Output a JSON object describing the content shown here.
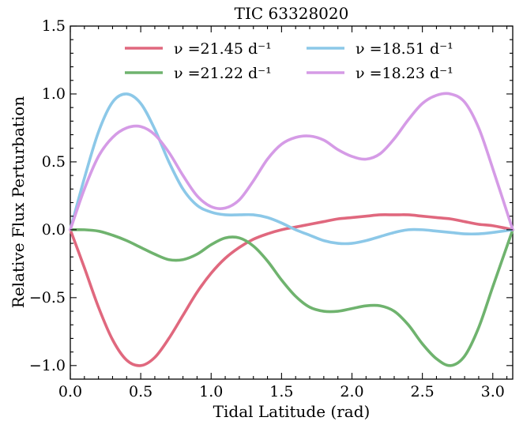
{
  "chart_data": {
    "type": "line",
    "title": "TIC 63328020",
    "xlabel": "Tidal Latitude (rad)",
    "ylabel": "Relative Flux Perturbation",
    "xlim": [
      0.0,
      3.1416
    ],
    "ylim": [
      -1.1,
      1.5
    ],
    "x_ticks": [
      "0.0",
      "0.5",
      "1.0",
      "1.5",
      "2.0",
      "2.5",
      "3.0"
    ],
    "y_ticks": [
      "−1.0",
      "−0.5",
      "0.0",
      "0.5",
      "1.0",
      "1.5"
    ],
    "grid": false,
    "legend_position": "top",
    "series": [
      {
        "name": "ν =21.45 d⁻¹",
        "color": "#e0687e",
        "x": [
          0.0,
          0.1,
          0.2,
          0.3,
          0.4,
          0.5,
          0.6,
          0.7,
          0.8,
          0.9,
          1.0,
          1.1,
          1.2,
          1.3,
          1.4,
          1.5,
          1.6,
          1.7,
          1.8,
          1.9,
          2.0,
          2.1,
          2.2,
          2.3,
          2.4,
          2.5,
          2.6,
          2.7,
          2.8,
          2.9,
          3.0,
          3.1416
        ],
        "y": [
          0.0,
          -0.28,
          -0.57,
          -0.81,
          -0.96,
          -1.0,
          -0.94,
          -0.8,
          -0.63,
          -0.46,
          -0.32,
          -0.21,
          -0.13,
          -0.07,
          -0.03,
          0.0,
          0.02,
          0.04,
          0.06,
          0.08,
          0.09,
          0.1,
          0.11,
          0.11,
          0.11,
          0.1,
          0.09,
          0.08,
          0.06,
          0.04,
          0.03,
          0.0
        ]
      },
      {
        "name": "ν =21.22 d⁻¹",
        "color": "#6fb36e",
        "x": [
          0.0,
          0.1,
          0.2,
          0.3,
          0.4,
          0.5,
          0.6,
          0.7,
          0.8,
          0.9,
          1.0,
          1.1,
          1.2,
          1.3,
          1.4,
          1.5,
          1.6,
          1.7,
          1.8,
          1.9,
          2.0,
          2.1,
          2.2,
          2.3,
          2.4,
          2.5,
          2.6,
          2.7,
          2.8,
          2.9,
          3.0,
          3.1416
        ],
        "y": [
          0.0,
          0.0,
          -0.01,
          -0.04,
          -0.08,
          -0.13,
          -0.18,
          -0.22,
          -0.22,
          -0.18,
          -0.11,
          -0.06,
          -0.06,
          -0.12,
          -0.23,
          -0.37,
          -0.49,
          -0.57,
          -0.6,
          -0.6,
          -0.58,
          -0.56,
          -0.56,
          -0.6,
          -0.7,
          -0.84,
          -0.95,
          -1.0,
          -0.93,
          -0.72,
          -0.42,
          0.0
        ]
      },
      {
        "name": "ν =18.51 d⁻¹",
        "color": "#8cc8e8",
        "x": [
          0.0,
          0.1,
          0.2,
          0.3,
          0.4,
          0.5,
          0.6,
          0.7,
          0.8,
          0.9,
          1.0,
          1.1,
          1.2,
          1.3,
          1.4,
          1.5,
          1.6,
          1.7,
          1.8,
          1.9,
          2.0,
          2.1,
          2.2,
          2.3,
          2.4,
          2.5,
          2.6,
          2.7,
          2.8,
          2.9,
          3.0,
          3.1416
        ],
        "y": [
          0.0,
          0.38,
          0.72,
          0.94,
          1.0,
          0.93,
          0.74,
          0.5,
          0.3,
          0.18,
          0.13,
          0.11,
          0.11,
          0.11,
          0.09,
          0.05,
          0.0,
          -0.04,
          -0.08,
          -0.1,
          -0.1,
          -0.08,
          -0.05,
          -0.02,
          0.0,
          0.0,
          -0.01,
          -0.02,
          -0.03,
          -0.03,
          -0.02,
          0.0
        ]
      },
      {
        "name": "ν =18.23 d⁻¹",
        "color": "#d59be6",
        "x": [
          0.0,
          0.1,
          0.2,
          0.3,
          0.4,
          0.5,
          0.6,
          0.7,
          0.8,
          0.9,
          1.0,
          1.1,
          1.2,
          1.3,
          1.4,
          1.5,
          1.6,
          1.7,
          1.8,
          1.9,
          2.0,
          2.1,
          2.2,
          2.3,
          2.4,
          2.5,
          2.6,
          2.7,
          2.8,
          2.9,
          3.0,
          3.1416
        ],
        "y": [
          0.0,
          0.3,
          0.54,
          0.68,
          0.75,
          0.76,
          0.7,
          0.57,
          0.4,
          0.25,
          0.17,
          0.16,
          0.22,
          0.36,
          0.52,
          0.63,
          0.68,
          0.69,
          0.66,
          0.59,
          0.54,
          0.52,
          0.56,
          0.67,
          0.81,
          0.93,
          0.99,
          1.0,
          0.94,
          0.75,
          0.45,
          0.0
        ]
      }
    ]
  }
}
